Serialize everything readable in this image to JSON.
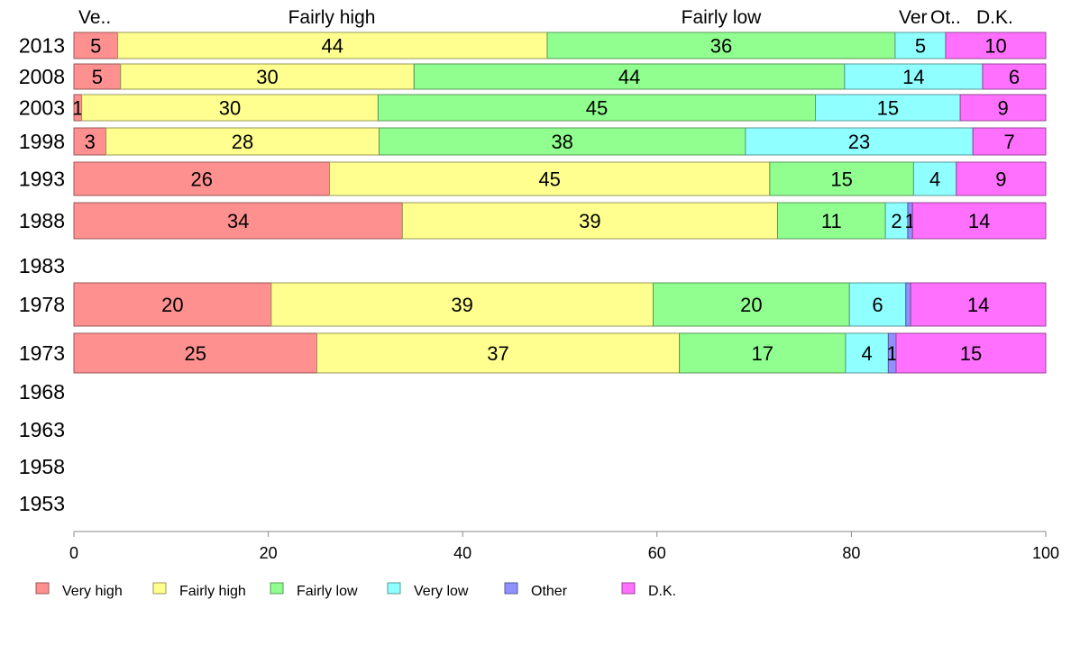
{
  "chart_data": {
    "type": "bar",
    "orientation": "horizontal",
    "stacked": true,
    "title": "",
    "xlabel": "",
    "ylabel": "",
    "xlim": [
      0,
      100
    ],
    "x_ticks": [
      0,
      20,
      40,
      60,
      80,
      100
    ],
    "grid": false,
    "legend_position": "bottom",
    "categories": [
      "2013",
      "2008",
      "2003",
      "1998",
      "1993",
      "1988",
      "1983",
      "1978",
      "1973",
      "1968",
      "1963",
      "1958",
      "1953"
    ],
    "column_headers": [
      "Ve..",
      "Fairly high",
      "Fairly low",
      "Ver",
      "Ot..",
      "D.K."
    ],
    "series": [
      {
        "name": "Very high",
        "color": "#ff9090",
        "values": [
          4.5,
          4.8,
          0.8,
          3.3,
          26.3,
          33.8,
          null,
          20.3,
          25.0,
          null,
          null,
          null,
          null
        ],
        "labels": [
          "5",
          "5",
          "1",
          "3",
          "26",
          "34",
          null,
          "20",
          "25",
          null,
          null,
          null,
          null
        ]
      },
      {
        "name": "Fairly high",
        "color": "#ffff90",
        "values": [
          44.2,
          30.2,
          30.5,
          28.1,
          45.3,
          38.6,
          null,
          39.3,
          37.3,
          null,
          null,
          null,
          null
        ],
        "labels": [
          "44",
          "30",
          "30",
          "28",
          "45",
          "39",
          null,
          "39",
          "37",
          null,
          null,
          null,
          null
        ]
      },
      {
        "name": "Fairly low",
        "color": "#90ff90",
        "values": [
          35.8,
          44.3,
          45.0,
          37.7,
          14.8,
          11.1,
          null,
          20.2,
          17.1,
          null,
          null,
          null,
          null
        ],
        "labels": [
          "36",
          "44",
          "45",
          "38",
          "15",
          "11",
          null,
          "20",
          "17",
          null,
          null,
          null,
          null
        ]
      },
      {
        "name": "Very low",
        "color": "#90ffff",
        "values": [
          5.2,
          14.2,
          14.9,
          23.4,
          4.4,
          2.3,
          null,
          5.8,
          4.4,
          null,
          null,
          null,
          null
        ],
        "labels": [
          "5",
          "14",
          "15",
          "23",
          "4",
          "2",
          null,
          "6",
          "4",
          null,
          null,
          null,
          null
        ]
      },
      {
        "name": "Other",
        "color": "#9090ff",
        "values": [
          0,
          0,
          0,
          0,
          0,
          0.5,
          null,
          0.5,
          0.8,
          null,
          null,
          null,
          null
        ],
        "labels": [
          null,
          null,
          null,
          null,
          null,
          "1",
          null,
          null,
          "1",
          null,
          null,
          null,
          null
        ]
      },
      {
        "name": "D.K.",
        "color": "#ff70ff",
        "values": [
          10.3,
          6.5,
          8.8,
          7.5,
          9.2,
          13.7,
          null,
          13.9,
          15.4,
          null,
          null,
          null,
          null
        ],
        "labels": [
          "10",
          "6",
          "9",
          "7",
          "9",
          "14",
          null,
          "14",
          "15",
          null,
          null,
          null,
          null
        ]
      }
    ]
  }
}
